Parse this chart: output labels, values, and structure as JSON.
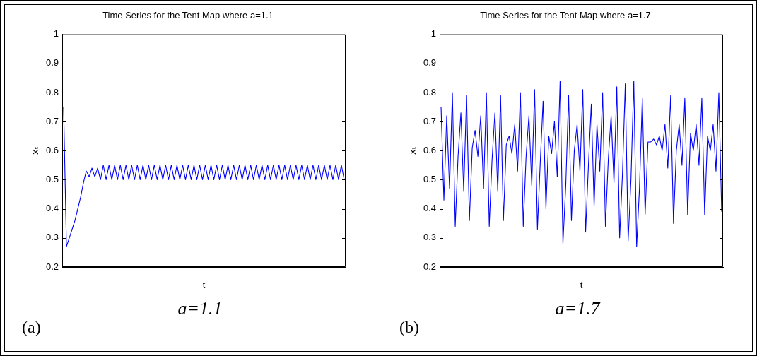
{
  "chart_data": [
    {
      "type": "line",
      "title": "Time Series for the Tent Map where a=1.1",
      "xlabel": "t",
      "ylabel": "xₜ",
      "annotations": [
        "a=1.1",
        "(a)"
      ],
      "tick_labels": "y",
      "ylim": [
        0.2,
        1
      ],
      "yticks": [
        0.2,
        0.3,
        0.4,
        0.5,
        0.6,
        0.7,
        0.8,
        0.9,
        1
      ],
      "categories": [
        null,
        null,
        null,
        null,
        null,
        null,
        null,
        null,
        null,
        null,
        null,
        null,
        null,
        null,
        null,
        null,
        null,
        null,
        null,
        null,
        null,
        null,
        null,
        null,
        null,
        null,
        null,
        null,
        null,
        null,
        null,
        null,
        null,
        null,
        null,
        null,
        null,
        null,
        null,
        null,
        null,
        null,
        null,
        null,
        null,
        null,
        null,
        null,
        null,
        null,
        null,
        null,
        null,
        null,
        null,
        null,
        null,
        null,
        null,
        null,
        null,
        null,
        null,
        null,
        null,
        null,
        null,
        null,
        null,
        null,
        null,
        null,
        null,
        null,
        null,
        null,
        null,
        null,
        null,
        null,
        null,
        null,
        null,
        null,
        null,
        null,
        null,
        null,
        null,
        null,
        null,
        null,
        null,
        null,
        null,
        null,
        null,
        null,
        null,
        null
      ],
      "series": [
        {
          "color": "#0000ff",
          "values": [
            0.75,
            0.27,
            0.3,
            0.33,
            0.36,
            0.4,
            0.44,
            0.49,
            0.53,
            0.51,
            0.54,
            0.51,
            0.54,
            0.5,
            0.55,
            0.5,
            0.55,
            0.5,
            0.55,
            0.5,
            0.55,
            0.5,
            0.55,
            0.5,
            0.55,
            0.5,
            0.55,
            0.5,
            0.55,
            0.5,
            0.55,
            0.5,
            0.55,
            0.5,
            0.55,
            0.5,
            0.55,
            0.5,
            0.55,
            0.5,
            0.55,
            0.5,
            0.55,
            0.5,
            0.55,
            0.5,
            0.55,
            0.5,
            0.55,
            0.5,
            0.55,
            0.5,
            0.55,
            0.5,
            0.55,
            0.5,
            0.55,
            0.5,
            0.55,
            0.5,
            0.55,
            0.5,
            0.55,
            0.5,
            0.55,
            0.5,
            0.55,
            0.5,
            0.55,
            0.5,
            0.55,
            0.5,
            0.55,
            0.5,
            0.55,
            0.5,
            0.55,
            0.5,
            0.55,
            0.5,
            0.55,
            0.5,
            0.55,
            0.5,
            0.55,
            0.5,
            0.55,
            0.5,
            0.55,
            0.5,
            0.55,
            0.5,
            0.55,
            0.5,
            0.55,
            0.5,
            0.55,
            0.5,
            0.55,
            0.5
          ]
        }
      ]
    },
    {
      "type": "line",
      "title": "Time Series for the Tent Map where a=1.7",
      "xlabel": "t",
      "ylabel": "xₜ",
      "annotations": [
        "a=1.7",
        "(b)"
      ],
      "tick_labels": "y",
      "ylim": [
        0.2,
        1
      ],
      "yticks": [
        0.2,
        0.3,
        0.4,
        0.5,
        0.6,
        0.7,
        0.8,
        0.9,
        1
      ],
      "categories": [
        null,
        null,
        null,
        null,
        null,
        null,
        null,
        null,
        null,
        null,
        null,
        null,
        null,
        null,
        null,
        null,
        null,
        null,
        null,
        null,
        null,
        null,
        null,
        null,
        null,
        null,
        null,
        null,
        null,
        null,
        null,
        null,
        null,
        null,
        null,
        null,
        null,
        null,
        null,
        null,
        null,
        null,
        null,
        null,
        null,
        null,
        null,
        null,
        null,
        null,
        null,
        null,
        null,
        null,
        null,
        null,
        null,
        null,
        null,
        null,
        null,
        null,
        null,
        null,
        null,
        null,
        null,
        null,
        null,
        null,
        null,
        null,
        null,
        null,
        null,
        null,
        null,
        null,
        null,
        null,
        null,
        null,
        null,
        null,
        null,
        null,
        null,
        null,
        null,
        null,
        null,
        null,
        null,
        null,
        null,
        null,
        null,
        null,
        null,
        null
      ],
      "series": [
        {
          "color": "#0000ff",
          "values": [
            0.75,
            0.43,
            0.72,
            0.47,
            0.8,
            0.34,
            0.58,
            0.73,
            0.46,
            0.79,
            0.36,
            0.61,
            0.67,
            0.58,
            0.72,
            0.47,
            0.8,
            0.34,
            0.57,
            0.73,
            0.46,
            0.79,
            0.36,
            0.62,
            0.65,
            0.59,
            0.69,
            0.53,
            0.8,
            0.34,
            0.58,
            0.72,
            0.48,
            0.81,
            0.33,
            0.56,
            0.77,
            0.4,
            0.65,
            0.59,
            0.7,
            0.51,
            0.84,
            0.28,
            0.48,
            0.79,
            0.36,
            0.6,
            0.69,
            0.53,
            0.81,
            0.32,
            0.55,
            0.76,
            0.41,
            0.69,
            0.53,
            0.8,
            0.34,
            0.57,
            0.72,
            0.49,
            0.82,
            0.3,
            0.52,
            0.83,
            0.29,
            0.5,
            0.84,
            0.27,
            0.47,
            0.78,
            0.38,
            0.63,
            0.63,
            0.64,
            0.62,
            0.65,
            0.6,
            0.69,
            0.54,
            0.79,
            0.35,
            0.6,
            0.69,
            0.55,
            0.78,
            0.38,
            0.66,
            0.6,
            0.69,
            0.55,
            0.78,
            0.38,
            0.65,
            0.6,
            0.69,
            0.53,
            0.8,
            0.39
          ]
        }
      ]
    }
  ]
}
